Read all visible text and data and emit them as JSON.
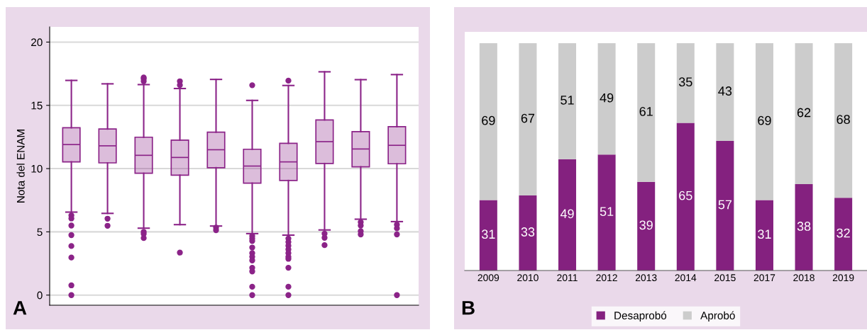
{
  "chart_data": [
    {
      "type": "box",
      "ylabel": "Nota del ENAM",
      "categories": [
        null,
        null,
        null,
        null,
        null,
        null,
        null,
        null,
        null,
        null
      ],
      "color": "#8b2388",
      "ylim": [
        -0.8,
        21.2
      ],
      "yticks": [
        0,
        5,
        10,
        15,
        20
      ],
      "grid": "y",
      "tick_labels": "y",
      "annotations": [
        "A"
      ],
      "boxes": [
        {
          "low": 6.56,
          "q1": 10.53,
          "median": 11.9,
          "q3": 13.23,
          "high": 16.97,
          "outliers": [
            6.3,
            6.06,
            5.5,
            4.74,
            3.88,
            2.97,
            0.77,
            0
          ]
        },
        {
          "low": 6.46,
          "q1": 10.45,
          "median": 11.8,
          "q3": 13.13,
          "high": 16.7,
          "outliers": [
            6.04,
            5.48
          ]
        },
        {
          "low": 5.29,
          "q1": 9.63,
          "median": 11.05,
          "q3": 12.48,
          "high": 16.64,
          "outliers": [
            17.2,
            17.1,
            16.9,
            5.0,
            4.84,
            4.51
          ]
        },
        {
          "low": 5.57,
          "q1": 9.48,
          "median": 10.88,
          "q3": 12.25,
          "high": 16.33,
          "outliers": [
            16.9,
            16.6,
            3.36
          ]
        },
        {
          "low": 5.46,
          "q1": 10.07,
          "median": 11.49,
          "q3": 12.88,
          "high": 17.05,
          "outliers": [
            5.34,
            5.13
          ]
        },
        {
          "low": 4.86,
          "q1": 8.85,
          "median": 10.2,
          "q3": 11.53,
          "high": 15.39,
          "outliers": [
            16.59,
            4.67,
            4.47,
            4.28,
            3.76,
            3.32,
            3.03,
            2.74,
            2.16,
            1.87,
            0.66,
            0
          ]
        },
        {
          "low": 4.74,
          "q1": 9.06,
          "median": 10.53,
          "q3": 12.0,
          "high": 16.57,
          "outliers": [
            16.95,
            4.47,
            4.19,
            3.9,
            3.61,
            3.32,
            3.03,
            2.87,
            2.16,
            0.66,
            0
          ]
        },
        {
          "low": 5.15,
          "q1": 10.4,
          "median": 12.13,
          "q3": 13.85,
          "high": 17.65,
          "outliers": [
            4.86,
            4.53,
            3.95
          ]
        },
        {
          "low": 6.0,
          "q1": 10.14,
          "median": 11.55,
          "q3": 12.92,
          "high": 17.03,
          "outliers": [
            5.77,
            5.5,
            5.05,
            4.8
          ]
        },
        {
          "low": 5.81,
          "q1": 10.38,
          "median": 11.84,
          "q3": 13.31,
          "high": 17.43,
          "outliers": [
            5.57,
            5.28,
            4.8,
            0
          ]
        }
      ]
    },
    {
      "type": "bar",
      "stacked": true,
      "categories": [
        "2009",
        "2010",
        "2011",
        "2012",
        "2013",
        "2014",
        "2015",
        "2017",
        "2018",
        "2019"
      ],
      "tick_labels": "x",
      "data_labels": true,
      "legend": "bottom",
      "annotations": [
        "B"
      ],
      "series": [
        {
          "name": "Desaprobó",
          "color": "#84217f",
          "values": [
            31,
            33,
            49,
            51,
            39,
            65,
            57,
            31,
            38,
            32
          ]
        },
        {
          "name": "Aprobó",
          "color": "#cccccc",
          "values": [
            69,
            67,
            51,
            49,
            61,
            35,
            43,
            69,
            62,
            68
          ]
        }
      ]
    }
  ]
}
